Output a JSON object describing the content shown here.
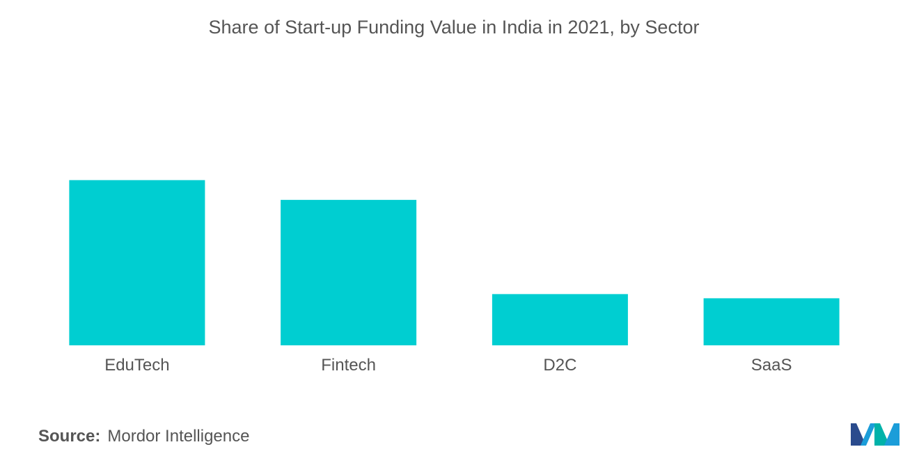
{
  "chart_data": {
    "type": "bar",
    "title": "Share of Start-up Funding Value in India in 2021, by Sector",
    "categories": [
      "EduTech",
      "Fintech",
      "D2C",
      "SaaS"
    ],
    "values": [
      100,
      88,
      31,
      28.5
    ],
    "xlabel": "",
    "ylabel": "",
    "ylim": [
      0,
      150
    ],
    "grid": false,
    "legend": "none",
    "bar_color": "#00CED1"
  },
  "source": {
    "label": "Source:",
    "value": "Mordor Intelligence"
  },
  "logo": {
    "icon": "mordor-intelligence-logo-icon",
    "colors": [
      "#1B9DD9",
      "#00B2A9",
      "#2A4B8D"
    ]
  }
}
